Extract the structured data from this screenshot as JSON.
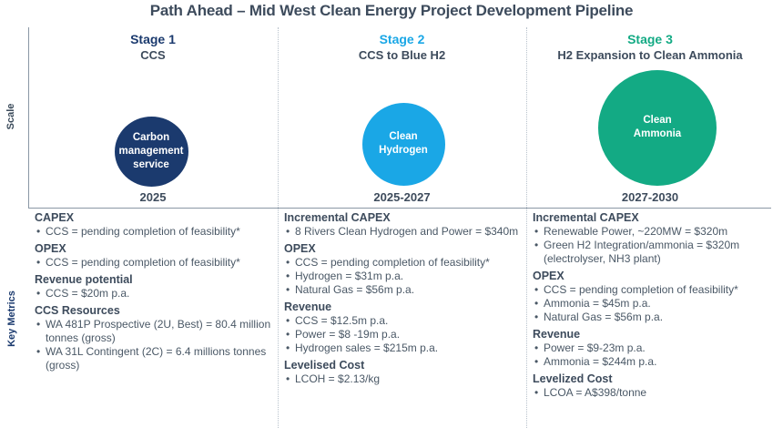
{
  "title": "Path Ahead – Mid West Clean Energy Project Development Pipeline",
  "axis_labels": {
    "scale": "Scale",
    "metrics": "Key Metrics"
  },
  "colors": {
    "stage1": "#1b3a6e",
    "stage2": "#1aa7e6",
    "stage3": "#13aa84"
  },
  "stages": [
    {
      "stage": "Stage 1",
      "name": "CCS",
      "circle": "Carbon\nmanagement\nservice",
      "year": "2025",
      "metrics": [
        {
          "heading": "CAPEX",
          "items": [
            "CCS = pending completion of feasibility*"
          ]
        },
        {
          "heading": "OPEX",
          "items": [
            "CCS = pending completion of feasibility*"
          ]
        },
        {
          "heading": "Revenue potential",
          "items": [
            "CCS = $20m p.a."
          ]
        },
        {
          "heading": "CCS Resources",
          "items": [
            "WA 481P Prospective (2U, Best) = 80.4 million tonnes (gross)",
            "WA 31L Contingent (2C) = 6.4 millions tonnes (gross)"
          ]
        }
      ]
    },
    {
      "stage": "Stage 2",
      "name": "CCS to Blue H2",
      "circle": "Clean\nHydrogen",
      "year": "2025-2027",
      "metrics": [
        {
          "heading": "Incremental CAPEX",
          "items": [
            "8 Rivers Clean Hydrogen and Power = $340m"
          ]
        },
        {
          "heading": "OPEX",
          "items": [
            "CCS = pending completion of feasibility*",
            "Hydrogen = $31m p.a.",
            "Natural Gas = $56m p.a."
          ]
        },
        {
          "heading": "Revenue",
          "items": [
            "CCS = $12.5m p.a.",
            "Power = $8 -19m p.a.",
            "Hydrogen sales = $215m p.a."
          ]
        },
        {
          "heading": "Levelised Cost",
          "items": [
            "LCOH = $2.13/kg"
          ]
        }
      ]
    },
    {
      "stage": "Stage 3",
      "name": "H2 Expansion to Clean Ammonia",
      "circle": "Clean\nAmmonia",
      "year": "2027-2030",
      "metrics": [
        {
          "heading": "Incremental CAPEX",
          "items": [
            "Renewable Power, ~220MW = $320m",
            "Green H2 Integration/ammonia =  $320m (electrolyser, NH3 plant)"
          ]
        },
        {
          "heading": "OPEX",
          "items": [
            "CCS = pending completion of feasibility*",
            "Ammonia = $45m p.a.",
            "Natural Gas = $56m p.a."
          ]
        },
        {
          "heading": "Revenue",
          "items": [
            "Power = $9-23m p.a.",
            "Ammonia = $244m p.a."
          ]
        },
        {
          "heading": "Levelized Cost",
          "items": [
            "LCOA = A$398/tonne"
          ]
        }
      ]
    }
  ]
}
